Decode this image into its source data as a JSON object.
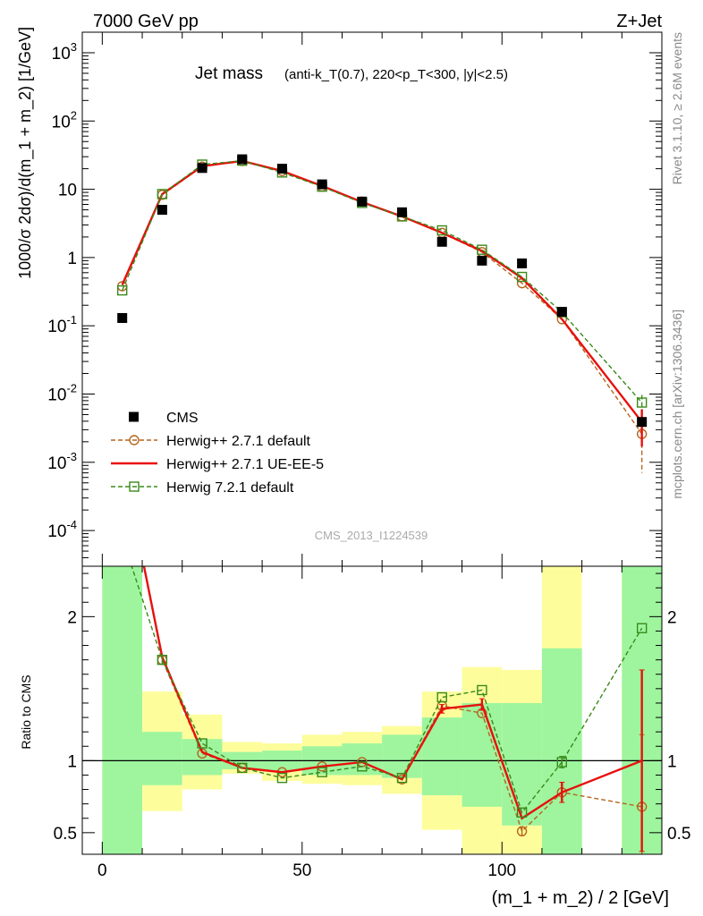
{
  "header": {
    "left": "7000 GeV pp",
    "right": "Z+Jet"
  },
  "side_labels": {
    "rivet": "Rivet 3.1.10, ≥ 2.6M events",
    "mcplots": "mcplots.cern.ch [arXiv:1306.3436]"
  },
  "watermark": "CMS_2013_I1224539",
  "plot_title": {
    "main": "Jet mass",
    "sub": "(anti-k_T(0.7), 220<p_T<300, |y|<2.5)"
  },
  "colors": {
    "cms": "#000000",
    "h271": "#b5651d",
    "ueee5": "#e8100e",
    "h721": "#3a8a1a",
    "band_inner": "#9ef59e",
    "band_outer": "#fdfd9c"
  },
  "chart_data": [
    {
      "type": "scatter",
      "xlabel": "(m_1 + m_2) / 2 [GeV]",
      "ylabel": "1000/σ 2dσ)/d(m_1 + m_2) [1/GeV]",
      "xlim": [
        -5,
        140
      ],
      "ylim": [
        3e-05,
        2000
      ],
      "yscale": "log",
      "x_ticks": [
        "0",
        "50",
        "100"
      ],
      "y_ticks": [
        "10^{-4}",
        "10^{-3}",
        "10^{-2}",
        "10^{-1}",
        "1",
        "10",
        "10^{2}",
        "10^{3}"
      ],
      "legend_position": "bottom-left",
      "x": [
        5,
        15,
        25,
        35,
        45,
        55,
        65,
        75,
        85,
        95,
        105,
        115,
        135
      ],
      "series": [
        {
          "name": "CMS",
          "values": [
            0.13,
            5.0,
            20.5,
            27.5,
            20.0,
            11.8,
            6.6,
            4.6,
            1.7,
            0.9,
            0.82,
            0.16,
            0.0039
          ],
          "errors": [
            0,
            0,
            0,
            0,
            0,
            0,
            0,
            0,
            0,
            0,
            0,
            0,
            0
          ]
        },
        {
          "name": "Herwig++ 2.7.1 default",
          "values": [
            0.38,
            8.3,
            21.5,
            26.0,
            18.5,
            11.0,
            6.6,
            4.0,
            2.3,
            1.2,
            0.42,
            0.125,
            0.0026
          ],
          "err_low": [
            0,
            0,
            0,
            0,
            0,
            0,
            0,
            0,
            0,
            0,
            0,
            0,
            0.0019
          ],
          "err_high": [
            0,
            0,
            0,
            0,
            0,
            0,
            0,
            0,
            0,
            0,
            0,
            0,
            0.0013
          ]
        },
        {
          "name": "Herwig++ 2.7.1 UE-EE-5",
          "values": [
            0.4,
            8.5,
            21.8,
            26.0,
            18.5,
            11.2,
            6.5,
            4.0,
            2.3,
            1.25,
            0.5,
            0.125,
            0.0039
          ],
          "err_low": [
            0,
            0,
            0,
            0,
            0,
            0,
            0,
            0,
            0,
            0,
            0,
            0,
            0.0022
          ],
          "err_high": [
            0,
            0,
            0,
            0,
            0,
            0,
            0,
            0,
            0,
            0,
            0,
            0,
            0.0021
          ]
        },
        {
          "name": "Herwig 7.2.1 default",
          "values": [
            0.33,
            8.5,
            23.0,
            26.2,
            17.6,
            10.9,
            6.3,
            4.0,
            2.5,
            1.3,
            0.52,
            0.158,
            0.0075
          ],
          "err_low": [
            0,
            0,
            0,
            0,
            0,
            0,
            0,
            0,
            0,
            0,
            0,
            0,
            0.0016
          ],
          "err_high": [
            0,
            0,
            0,
            0,
            0,
            0,
            0,
            0,
            0,
            0,
            0,
            0,
            0.0022
          ]
        }
      ]
    },
    {
      "type": "line",
      "ylabel": "Ratio to CMS",
      "xlabel": "(m_1 + m_2) / 2 [GeV]",
      "xlim": [
        -5,
        140
      ],
      "ylim": [
        0.35,
        2.35
      ],
      "y_ticks": [
        0.5,
        1,
        2
      ],
      "x_ticks": [
        0,
        50,
        100
      ],
      "bins": [
        [
          0,
          10
        ],
        [
          10,
          20
        ],
        [
          20,
          30
        ],
        [
          30,
          40
        ],
        [
          40,
          50
        ],
        [
          50,
          60
        ],
        [
          60,
          70
        ],
        [
          70,
          80
        ],
        [
          80,
          90
        ],
        [
          90,
          100
        ],
        [
          100,
          110
        ],
        [
          110,
          120
        ],
        [
          130,
          140
        ]
      ],
      "band_outer": [
        [
          0.35,
          2.35
        ],
        [
          0.65,
          1.48
        ],
        [
          0.8,
          1.32
        ],
        [
          0.91,
          1.13
        ],
        [
          0.86,
          1.12
        ],
        [
          0.84,
          1.18
        ],
        [
          0.83,
          1.2
        ],
        [
          0.77,
          1.24
        ],
        [
          0.52,
          1.48
        ],
        [
          0.35,
          1.65
        ],
        [
          0.35,
          1.63
        ],
        [
          0.35,
          2.35
        ],
        [
          0.35,
          2.35
        ]
      ],
      "band_inner": [
        [
          0.35,
          2.35
        ],
        [
          0.83,
          1.2
        ],
        [
          0.9,
          1.15
        ],
        [
          0.94,
          1.06
        ],
        [
          0.93,
          1.07
        ],
        [
          0.9,
          1.1
        ],
        [
          0.9,
          1.12
        ],
        [
          0.88,
          1.18
        ],
        [
          0.76,
          1.3
        ],
        [
          0.68,
          1.4
        ],
        [
          0.55,
          1.4
        ],
        [
          0.35,
          1.78
        ],
        [
          0.35,
          2.35
        ]
      ],
      "x": [
        5,
        15,
        25,
        35,
        45,
        55,
        65,
        75,
        85,
        95,
        105,
        115,
        135
      ],
      "series": [
        {
          "name": "Herwig++ 2.7.1 default",
          "values": [
            3.1,
            1.7,
            1.05,
            0.95,
            0.92,
            0.96,
            0.99,
            0.87,
            1.38,
            1.33,
            0.51,
            0.78,
            0.68
          ],
          "err": [
            0,
            0,
            0,
            0,
            0,
            0,
            0,
            0,
            0,
            0,
            0.03,
            0,
            0.5
          ]
        },
        {
          "name": "Herwig++ 2.7.1 UE-EE-5",
          "values": [
            3.1,
            1.72,
            1.06,
            0.95,
            0.92,
            0.96,
            0.99,
            0.87,
            1.36,
            1.39,
            0.6,
            0.78,
            1.0
          ],
          "err": [
            0,
            0,
            0,
            0,
            0,
            0,
            0,
            0,
            0.03,
            0.04,
            0,
            0.07,
            0.63
          ]
        },
        {
          "name": "Herwig 7.2.1 default",
          "values": [
            2.55,
            1.7,
            1.12,
            0.95,
            0.88,
            0.92,
            0.96,
            0.88,
            1.44,
            1.49,
            0.64,
            0.99,
            1.92
          ],
          "err": [
            0.06,
            0.03,
            0,
            0,
            0,
            0,
            0,
            0,
            0,
            0,
            0,
            0.04,
            0
          ]
        }
      ]
    }
  ]
}
